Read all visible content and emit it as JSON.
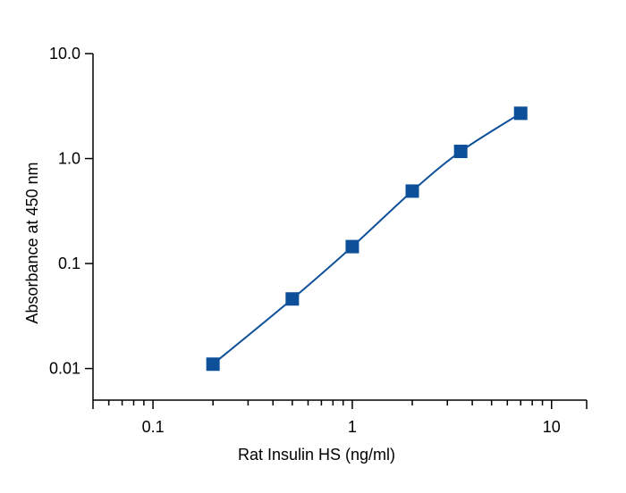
{
  "chart_data": {
    "type": "scatter",
    "title": "",
    "xlabel": "Rat Insulin HS (ng/ml)",
    "ylabel": "Absorbance at 450 nm",
    "x_scale": "log",
    "y_scale": "log",
    "xlim": [
      0.05,
      15
    ],
    "ylim": [
      0.005,
      10
    ],
    "x_ticks": [
      0.1,
      1,
      10
    ],
    "x_tick_labels": [
      "0.1",
      "1",
      "10"
    ],
    "x_minor_ticks": [
      0.06,
      0.07,
      0.08,
      0.09,
      0.2,
      0.3,
      0.4,
      0.5,
      0.6,
      0.7,
      0.8,
      0.9,
      2,
      3,
      4,
      5,
      6,
      7,
      8,
      9
    ],
    "y_ticks": [
      0.01,
      0.1,
      1,
      10
    ],
    "y_tick_labels": [
      "0.01",
      "0.1",
      "1.0",
      "10.0"
    ],
    "grid": false,
    "legend": false,
    "series": [
      {
        "marker": "square",
        "color": "#0e4f9a",
        "x": [
          0.2,
          0.5,
          1,
          2,
          3.5,
          7
        ],
        "y": [
          0.011,
          0.046,
          0.145,
          0.49,
          1.17,
          2.7
        ]
      }
    ]
  }
}
